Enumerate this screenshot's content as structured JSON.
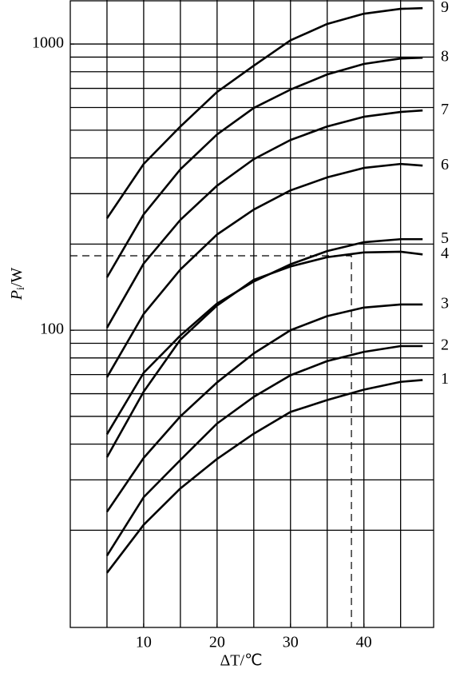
{
  "chart_data": {
    "type": "line",
    "xlabel": "ΔT/℃",
    "ylabel": [
      "P",
      "i",
      "/W"
    ],
    "log_y": true,
    "grid": true,
    "color": "#000000",
    "xlim": [
      0,
      49.5
    ],
    "xticks": [
      10,
      20,
      30,
      40
    ],
    "x_grid": [
      5,
      10,
      15,
      20,
      25,
      30,
      35,
      40,
      45
    ],
    "ylim": [
      9.15,
      1425
    ],
    "yticks": [
      100,
      1000
    ],
    "y_grid": [
      20,
      30,
      40,
      50,
      60,
      70,
      80,
      90,
      100,
      200,
      300,
      400,
      500,
      600,
      700,
      800,
      900,
      1000
    ],
    "guide": {
      "x": 38.3,
      "y": 182
    },
    "x": [
      5,
      10,
      15,
      20,
      25,
      30,
      35,
      40,
      45,
      48
    ],
    "series": [
      {
        "name": "1",
        "values": [
          14.2,
          20.9,
          28,
          35.5,
          43.5,
          51.8,
          57,
          62,
          66,
          67
        ]
      },
      {
        "name": "2",
        "values": [
          16.3,
          26.1,
          35.2,
          47.2,
          58.5,
          69.6,
          78,
          84,
          88,
          88
        ]
      },
      {
        "name": "3",
        "values": [
          23.2,
          35.8,
          50,
          65.7,
          83,
          100,
          112,
          120,
          123,
          123
        ]
      },
      {
        "name": "4",
        "values": [
          36,
          61,
          92.7,
          122,
          150,
          167,
          180,
          187,
          188,
          184
        ]
      },
      {
        "name": "5",
        "values": [
          43.3,
          71,
          95.8,
          124,
          148,
          170,
          189,
          203,
          208,
          208
        ]
      },
      {
        "name": "6",
        "values": [
          68.5,
          114,
          163,
          216,
          264,
          308,
          342,
          369,
          381,
          376
        ]
      },
      {
        "name": "7",
        "values": [
          102,
          171,
          243,
          320,
          396,
          462,
          515,
          557,
          579,
          586
        ]
      },
      {
        "name": "8",
        "values": [
          153,
          254,
          365,
          483,
          598,
          693,
          783,
          852,
          890,
          896
        ]
      },
      {
        "name": "9",
        "values": [
          246,
          381,
          515,
          680,
          840,
          1030,
          1175,
          1276,
          1327,
          1335
        ]
      }
    ]
  }
}
